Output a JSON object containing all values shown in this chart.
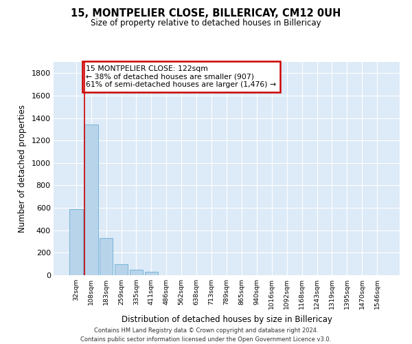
{
  "title": "15, MONTPELIER CLOSE, BILLERICAY, CM12 0UH",
  "subtitle": "Size of property relative to detached houses in Billericay",
  "xlabel": "Distribution of detached houses by size in Billericay",
  "ylabel": "Number of detached properties",
  "bar_color": "#b8d4ea",
  "bar_edge_color": "#6aaed6",
  "categories": [
    "32sqm",
    "108sqm",
    "183sqm",
    "259sqm",
    "335sqm",
    "411sqm",
    "486sqm",
    "562sqm",
    "638sqm",
    "713sqm",
    "789sqm",
    "865sqm",
    "940sqm",
    "1016sqm",
    "1092sqm",
    "1168sqm",
    "1243sqm",
    "1319sqm",
    "1395sqm",
    "1470sqm",
    "1546sqm"
  ],
  "values": [
    590,
    1340,
    330,
    100,
    50,
    28,
    0,
    0,
    0,
    0,
    0,
    0,
    0,
    0,
    0,
    0,
    0,
    0,
    0,
    0,
    0
  ],
  "ylim": [
    0,
    1900
  ],
  "yticks": [
    0,
    200,
    400,
    600,
    800,
    1000,
    1200,
    1400,
    1600,
    1800
  ],
  "annotation_text": "15 MONTPELIER CLOSE: 122sqm\n← 38% of detached houses are smaller (907)\n61% of semi-detached houses are larger (1,476) →",
  "annotation_box_facecolor": "#ffffff",
  "annotation_border_color": "#cc0000",
  "footer_line1": "Contains HM Land Registry data © Crown copyright and database right 2024.",
  "footer_line2": "Contains public sector information licensed under the Open Government Licence v3.0.",
  "plot_bg_color": "#ddeaf7",
  "grid_color": "#ffffff",
  "red_line_x": 0.58
}
